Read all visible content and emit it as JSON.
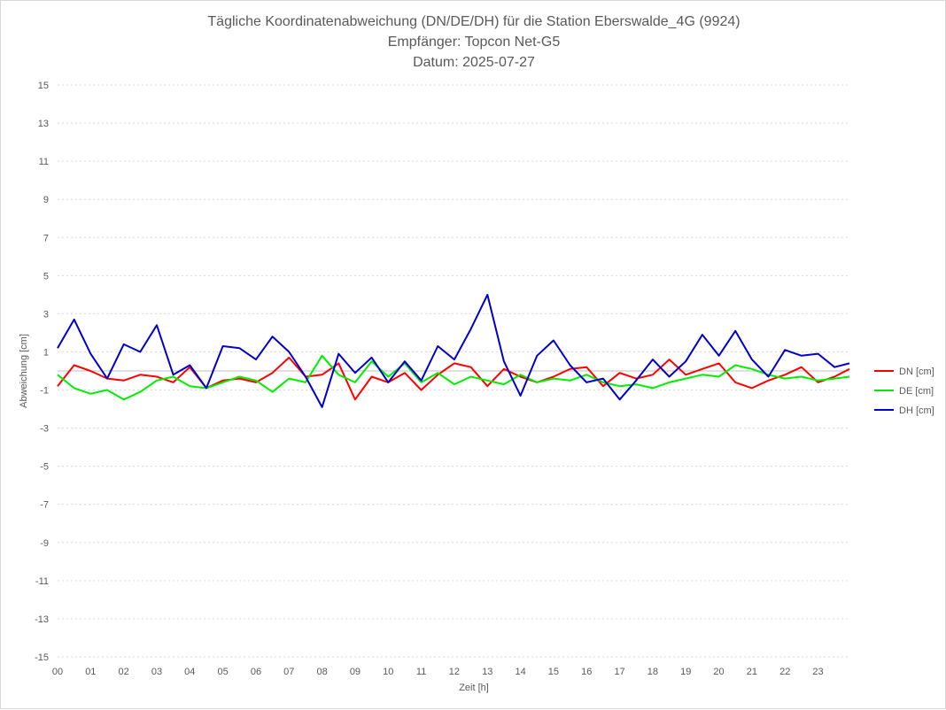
{
  "chart_data": {
    "type": "line",
    "title_lines": [
      "Tägliche Koordinatenabweichung (DN/DE/DH) für die Station Eberswalde_4G (9924)",
      "Empfänger: Topcon Net-G5",
      "Datum: 2025-07-27"
    ],
    "xlabel": "Zeit [h]",
    "ylabel": "Abweichung [cm]",
    "xlim": [
      0,
      23.95
    ],
    "ylim": [
      -15,
      15
    ],
    "x_ticks": [
      0,
      1,
      2,
      3,
      4,
      5,
      6,
      7,
      8,
      9,
      10,
      11,
      12,
      13,
      14,
      15,
      16,
      17,
      18,
      19,
      20,
      21,
      22,
      23
    ],
    "x_tick_labels": [
      "00",
      "01",
      "02",
      "03",
      "04",
      "05",
      "06",
      "07",
      "08",
      "09",
      "10",
      "11",
      "12",
      "13",
      "14",
      "15",
      "16",
      "17",
      "18",
      "19",
      "20",
      "21",
      "22",
      "23"
    ],
    "y_ticks": [
      15,
      13,
      11,
      9,
      7,
      5,
      3,
      1,
      -1,
      -3,
      -5,
      -7,
      -9,
      -11,
      -13,
      -15
    ],
    "grid": true,
    "legend_position": "right",
    "series": [
      {
        "name": "DN [cm]",
        "color": "#ff0000",
        "x": [
          0,
          0.5,
          1,
          1.5,
          2,
          2.5,
          3,
          3.5,
          4,
          4.5,
          5,
          5.5,
          6,
          6.5,
          7,
          7.5,
          8,
          8.5,
          9,
          9.5,
          10,
          10.5,
          11,
          11.5,
          12,
          12.5,
          13,
          13.5,
          14,
          14.5,
          15,
          15.5,
          16,
          16.5,
          17,
          17.5,
          18,
          18.5,
          19,
          19.5,
          20,
          20.5,
          21,
          21.5,
          22,
          22.5,
          23,
          23.5,
          23.95
        ],
        "values": [
          -0.8,
          0.3,
          0,
          -0.4,
          -0.5,
          -0.2,
          -0.3,
          -0.6,
          0.2,
          -0.9,
          -0.5,
          -0.4,
          -0.6,
          -0.1,
          0.7,
          -0.3,
          -0.2,
          0.4,
          -1.5,
          -0.3,
          -0.6,
          -0.1,
          -1.0,
          -0.2,
          0.4,
          0.2,
          -0.8,
          0.1,
          -0.3,
          -0.6,
          -0.3,
          0.1,
          0.2,
          -0.8,
          -0.1,
          -0.4,
          -0.2,
          0.6,
          -0.2,
          0.1,
          0.4,
          -0.6,
          -0.9,
          -0.5,
          -0.2,
          0.2,
          -0.6,
          -0.3,
          0.1
        ]
      },
      {
        "name": "DE [cm]",
        "color": "#00ee00",
        "x": [
          0,
          0.5,
          1,
          1.5,
          2,
          2.5,
          3,
          3.5,
          4,
          4.5,
          5,
          5.5,
          6,
          6.5,
          7,
          7.5,
          8,
          8.5,
          9,
          9.5,
          10,
          10.5,
          11,
          11.5,
          12,
          12.5,
          13,
          13.5,
          14,
          14.5,
          15,
          15.5,
          16,
          16.5,
          17,
          17.5,
          18,
          18.5,
          19,
          19.5,
          20,
          20.5,
          21,
          21.5,
          22,
          22.5,
          23,
          23.5,
          23.95
        ],
        "values": [
          -0.2,
          -0.9,
          -1.2,
          -1.0,
          -1.5,
          -1.1,
          -0.5,
          -0.3,
          -0.8,
          -0.9,
          -0.6,
          -0.3,
          -0.5,
          -1.1,
          -0.4,
          -0.6,
          0.8,
          -0.2,
          -0.6,
          0.5,
          -0.3,
          0.4,
          -0.6,
          -0.1,
          -0.7,
          -0.3,
          -0.5,
          -0.7,
          -0.2,
          -0.6,
          -0.4,
          -0.5,
          -0.2,
          -0.6,
          -0.8,
          -0.7,
          -0.9,
          -0.6,
          -0.4,
          -0.2,
          -0.3,
          0.3,
          0.1,
          -0.2,
          -0.4,
          -0.3,
          -0.5,
          -0.4,
          -0.3
        ]
      },
      {
        "name": "DH [cm]",
        "color": "#0000cc",
        "x": [
          0,
          0.5,
          1,
          1.5,
          2,
          2.5,
          3,
          3.5,
          4,
          4.5,
          5,
          5.5,
          6,
          6.5,
          7,
          7.5,
          8,
          8.5,
          9,
          9.5,
          10,
          10.5,
          11,
          11.5,
          12,
          12.5,
          13,
          13.5,
          14,
          14.5,
          15,
          15.5,
          16,
          16.5,
          17,
          17.5,
          18,
          18.5,
          19,
          19.5,
          20,
          20.5,
          21,
          21.5,
          22,
          22.5,
          23,
          23.5,
          23.95
        ],
        "values": [
          1.2,
          2.7,
          0.9,
          -0.4,
          1.4,
          1.0,
          2.4,
          -0.2,
          0.3,
          -0.9,
          1.3,
          1.2,
          0.6,
          1.8,
          1.0,
          -0.3,
          -1.9,
          0.9,
          -0.1,
          0.7,
          -0.6,
          0.5,
          -0.5,
          1.3,
          0.6,
          2.2,
          4.0,
          0.5,
          -1.3,
          0.8,
          1.6,
          0.3,
          -0.6,
          -0.4,
          -1.5,
          -0.5,
          0.6,
          -0.3,
          0.5,
          1.9,
          0.8,
          2.1,
          0.6,
          -0.3,
          1.1,
          0.8,
          0.9,
          0.2,
          0.4
        ]
      }
    ]
  }
}
